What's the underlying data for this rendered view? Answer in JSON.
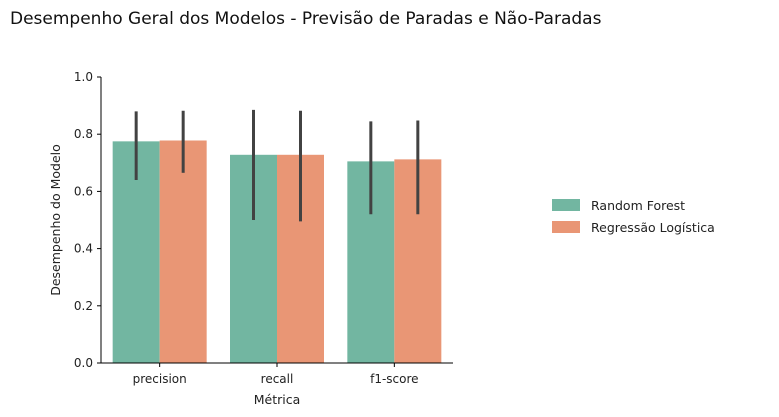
{
  "chart_data": {
    "type": "bar",
    "title": "Desempenho Geral dos Modelos - Previsão de Paradas e Não-Paradas",
    "xlabel": "Métrica",
    "ylabel": "Desempenho do Modelo",
    "ylim": [
      0,
      1.0
    ],
    "yticks": [
      "0.0",
      "0.2",
      "0.4",
      "0.6",
      "0.8",
      "1.0"
    ],
    "categories": [
      "precision",
      "recall",
      "f1-score"
    ],
    "series": [
      {
        "name": "Random Forest",
        "color": "#72b6a1",
        "values": [
          0.775,
          0.728,
          0.705
        ],
        "ci_low": [
          0.64,
          0.5,
          0.52
        ],
        "ci_high": [
          0.88,
          0.885,
          0.845
        ]
      },
      {
        "name": "Regressão Logística",
        "color": "#e99675",
        "values": [
          0.778,
          0.728,
          0.712
        ],
        "ci_low": [
          0.665,
          0.495,
          0.52
        ],
        "ci_high": [
          0.882,
          0.882,
          0.848
        ]
      }
    ],
    "grid": false,
    "legend_position": "right"
  }
}
